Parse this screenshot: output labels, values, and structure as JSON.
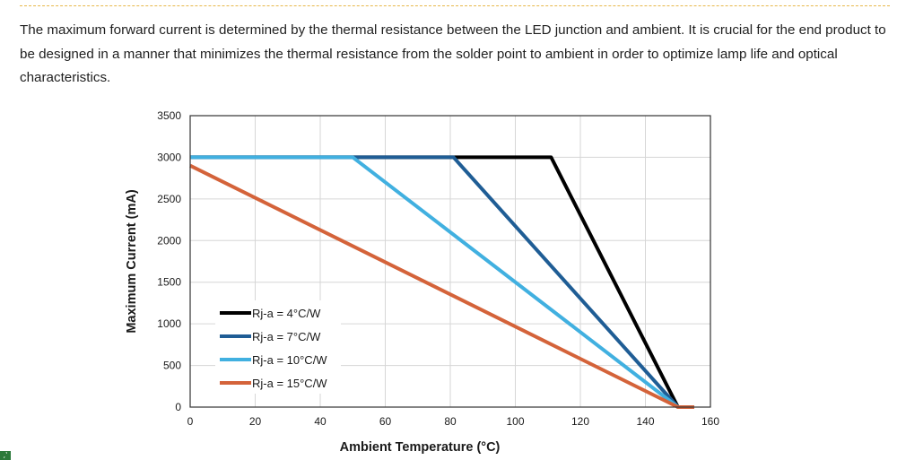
{
  "document": {
    "paragraph": "The maximum forward current is determined by the thermal resistance between the LED junction and ambient. It is crucial for the end product to be designed in a manner that minimizes the thermal resistance from the solder point to ambient in order to optimize lamp life and optical characteristics."
  },
  "chart_data": {
    "type": "line",
    "title": "",
    "xlabel": "Ambient Temperature (°C)",
    "ylabel": "Maximum Current (mA)",
    "xlim": [
      0,
      160
    ],
    "ylim": [
      0,
      3500
    ],
    "xticks": [
      0,
      20,
      40,
      60,
      80,
      100,
      120,
      140,
      160
    ],
    "yticks": [
      0,
      500,
      1000,
      1500,
      2000,
      2500,
      3000,
      3500
    ],
    "grid": true,
    "legend_position": "bottom-left",
    "series": [
      {
        "name": "Rj-a = 4°C/W",
        "color": "#000000",
        "x": [
          0,
          111,
          150,
          155
        ],
        "y": [
          3000,
          3000,
          0,
          0
        ]
      },
      {
        "name": "Rj-a = 7°C/W",
        "color": "#1f5d95",
        "x": [
          0,
          81,
          150,
          155
        ],
        "y": [
          3000,
          3000,
          0,
          0
        ]
      },
      {
        "name": "Rj-a = 10°C/W",
        "color": "#41b0e0",
        "x": [
          0,
          50,
          150,
          155
        ],
        "y": [
          3000,
          3000,
          0,
          0
        ]
      },
      {
        "name": "Rj-a = 15°C/W",
        "color": "#d4633a",
        "x": [
          0,
          150,
          155
        ],
        "y": [
          2900,
          0,
          0
        ]
      }
    ]
  },
  "badge": "‚‛"
}
